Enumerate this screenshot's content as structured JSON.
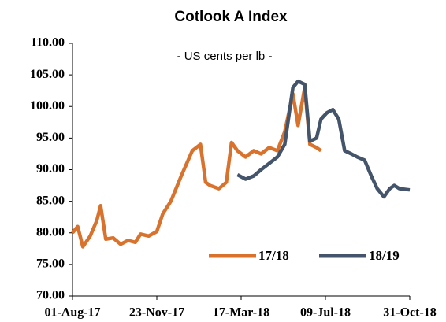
{
  "chart_data": {
    "type": "line",
    "title": "Cotlook A Index",
    "subtitle": "- US cents per lb -",
    "x": [
      "2017-08-01",
      "2017-08-08",
      "2017-08-15",
      "2017-08-25",
      "2017-09-03",
      "2017-09-08",
      "2017-09-15",
      "2017-09-25",
      "2017-10-05",
      "2017-10-15",
      "2017-10-25",
      "2017-11-01",
      "2017-11-12",
      "2017-11-23",
      "2017-12-01",
      "2017-12-12",
      "2017-12-26",
      "2018-01-10",
      "2018-01-21",
      "2018-01-28",
      "2018-02-03",
      "2018-02-15",
      "2018-02-25",
      "2018-03-04",
      "2018-03-12",
      "2018-03-23",
      "2018-04-03",
      "2018-04-13",
      "2018-04-24",
      "2018-05-05",
      "2018-05-15",
      "2018-05-26",
      "2018-06-02",
      "2018-06-11",
      "2018-06-18",
      "2018-06-27",
      "2018-07-03",
      "2018-07-11",
      "2018-07-19",
      "2018-07-27",
      "2018-08-04",
      "2018-08-13",
      "2018-08-21",
      "2018-08-31",
      "2018-09-09",
      "2018-09-17",
      "2018-09-26",
      "2018-10-04",
      "2018-10-10",
      "2018-10-17",
      "2018-10-31"
    ],
    "series": [
      {
        "name": "17/18",
        "color": "#d8722c",
        "values": [
          80,
          81,
          77.8,
          79.5,
          82,
          84.3,
          79,
          79.2,
          78.2,
          78.8,
          78.5,
          79.8,
          79.5,
          80.2,
          83,
          85,
          89,
          93,
          94,
          88,
          87.5,
          87,
          88,
          94.3,
          93,
          92,
          93,
          92.5,
          93.5,
          93,
          96,
          102,
          97,
          103,
          94,
          93.5,
          93,
          null,
          null,
          null,
          null,
          null,
          null,
          null,
          null,
          null,
          null,
          null,
          null,
          null,
          null
        ]
      },
      {
        "name": "18/19",
        "color": "#44546a",
        "values": [
          null,
          null,
          null,
          null,
          null,
          null,
          null,
          null,
          null,
          null,
          null,
          null,
          null,
          null,
          null,
          null,
          null,
          null,
          null,
          null,
          null,
          null,
          null,
          null,
          89.2,
          88.5,
          89,
          90,
          91,
          92,
          94,
          103,
          104,
          103.5,
          94.5,
          95,
          98,
          99,
          99.5,
          98,
          93,
          92.5,
          92,
          91.5,
          89,
          87,
          85.7,
          87,
          87.5,
          87,
          86.8
        ]
      }
    ],
    "xlim": [
      "2017-08-01",
      "2018-10-31"
    ],
    "xticks": [
      {
        "value": "2017-08-01",
        "label": "01-Aug-17"
      },
      {
        "value": "2017-11-23",
        "label": "23-Nov-17"
      },
      {
        "value": "2018-03-17",
        "label": "17-Mar-18"
      },
      {
        "value": "2018-07-09",
        "label": "09-Jul-18"
      },
      {
        "value": "2018-10-31",
        "label": "31-Oct-18"
      }
    ],
    "ylim": [
      70,
      110
    ],
    "yticks": [
      {
        "value": 70,
        "label": "70.00"
      },
      {
        "value": 75,
        "label": "75.00"
      },
      {
        "value": 80,
        "label": "80.00"
      },
      {
        "value": 85,
        "label": "85.00"
      },
      {
        "value": 90,
        "label": "90.00"
      },
      {
        "value": 95,
        "label": "95.00"
      },
      {
        "value": 100,
        "label": "100.00"
      },
      {
        "value": 105,
        "label": "105.00"
      },
      {
        "value": 110,
        "label": "110.00"
      }
    ],
    "grid": false,
    "legend": "lower right"
  }
}
